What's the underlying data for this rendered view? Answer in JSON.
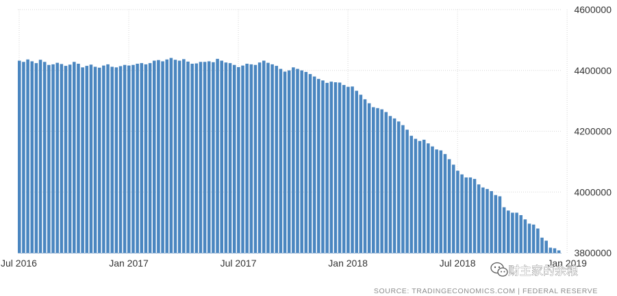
{
  "chart_data": {
    "type": "bar",
    "title": "",
    "xlabel": "",
    "ylabel": "",
    "x_tick_labels": [
      "Jul 2016",
      "Jan 2017",
      "Jul 2017",
      "Jan 2018",
      "Jul 2018",
      "Jan 2019"
    ],
    "y_tick_labels": [
      "4600000",
      "4400000",
      "4200000",
      "4000000",
      "3800000"
    ],
    "y_ticks": [
      4600000,
      4400000,
      4200000,
      4000000,
      3800000
    ],
    "ylim": [
      3800000,
      4600000
    ],
    "start_week": "2016-07-06",
    "frequency": "weekly",
    "grid": true,
    "legend": "none",
    "bar_color": "#4a86c0",
    "values": [
      4432000,
      4428000,
      4436000,
      4430000,
      4424000,
      4435000,
      4428000,
      4418000,
      4420000,
      4425000,
      4421000,
      4415000,
      4419000,
      4428000,
      4422000,
      4410000,
      4415000,
      4419000,
      4412000,
      4409000,
      4416000,
      4420000,
      4412000,
      4410000,
      4414000,
      4418000,
      4416000,
      4418000,
      4422000,
      4424000,
      4420000,
      4424000,
      4432000,
      4434000,
      4430000,
      4436000,
      4441000,
      4435000,
      4432000,
      4437000,
      4429000,
      4422000,
      4423000,
      4428000,
      4428000,
      4430000,
      4427000,
      4438000,
      4432000,
      4426000,
      4424000,
      4418000,
      4411000,
      4416000,
      4422000,
      4420000,
      4418000,
      4426000,
      4432000,
      4425000,
      4420000,
      4415000,
      4405000,
      4396000,
      4400000,
      4410000,
      4405000,
      4400000,
      4395000,
      4388000,
      4380000,
      4372000,
      4367000,
      4359000,
      4363000,
      4361000,
      4360000,
      4352000,
      4346000,
      4347000,
      4333000,
      4320000,
      4305000,
      4292000,
      4279000,
      4276000,
      4272000,
      4263000,
      4250000,
      4242000,
      4232000,
      4220000,
      4205000,
      4185000,
      4175000,
      4168000,
      4172000,
      4160000,
      4150000,
      4140000,
      4137000,
      4125000,
      4108000,
      4090000,
      4070000,
      4058000,
      4048000,
      4048000,
      4043000,
      4025000,
      4015000,
      4010000,
      4003000,
      3990000,
      3986000,
      3950000,
      3939000,
      3932000,
      3932000,
      3924000,
      3910000,
      3896000,
      3893000,
      3880000,
      3850000,
      3840000,
      3817000,
      3815000,
      3808000
    ]
  },
  "source_text": "SOURCE: TRADINGECONOMICS.COM  |  FEDERAL RESERVE",
  "watermark": {
    "text": "财主家的余粮",
    "icon": "wechat-icon"
  }
}
